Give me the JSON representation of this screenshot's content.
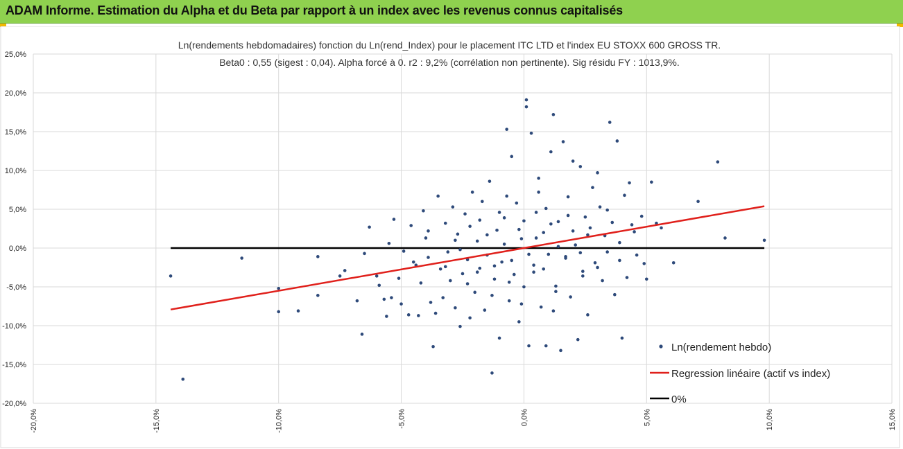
{
  "header": {
    "title": "ADAM Informe. Estimation du Alpha et du Beta par rapport à un index avec les revenus connus capitalisés"
  },
  "colors": {
    "header_bg": "#8fd14f",
    "points": "#2e4a7a",
    "regression": "#e0201b",
    "zero_line": "#000000",
    "grid": "#d9d9d9"
  },
  "chart_data": {
    "type": "scatter",
    "title_line1": "Ln(rendements hebdomadaires) fonction du Ln(rend_Index) pour le placement ITC LTD et l'index EU STOXX 600 GROSS TR.",
    "title_line2": "Beta0 : 0,55  (sigest : 0,04).  Alpha forcé à 0. r2 : 9,2% (corrélation non pertinente). Sig résidu FY : 1013,9%.",
    "xlim": [
      -20,
      15
    ],
    "ylim": [
      -20,
      25
    ],
    "x_ticks": [
      -20,
      -15,
      -10,
      -5,
      0,
      5,
      10,
      15
    ],
    "x_tick_labels": [
      "-20,0%",
      "-15,0%",
      "-10,0%",
      "-5,0%",
      "0,0%",
      "5,0%",
      "10,0%",
      "15,0%"
    ],
    "y_ticks": [
      25,
      20,
      15,
      10,
      5,
      0,
      -5,
      -10,
      -15,
      -20
    ],
    "y_tick_labels": [
      "25,0%",
      "20,0%",
      "15,0%",
      "10,0%",
      "5,0%",
      "0,0%",
      "-5,0%",
      "-10,0%",
      "-15,0%",
      "-20,0%"
    ],
    "regression": {
      "beta": 0.55,
      "alpha": 0,
      "x_range": [
        -14.4,
        9.8
      ]
    },
    "zero_line": {
      "y": 0,
      "x_range": [
        -14.4,
        9.8
      ]
    },
    "series": [
      {
        "name": "Ln(rendement hebdo)",
        "points": [
          [
            -14.4,
            -3.6
          ],
          [
            -13.9,
            -16.9
          ],
          [
            -11.5,
            -1.3
          ],
          [
            -10.0,
            -5.2
          ],
          [
            -10.0,
            -8.2
          ],
          [
            -9.2,
            -8.1
          ],
          [
            -8.4,
            -1.1
          ],
          [
            -8.4,
            -6.1
          ],
          [
            -7.5,
            -3.6
          ],
          [
            -7.3,
            -2.9
          ],
          [
            -6.8,
            -6.8
          ],
          [
            -6.6,
            -11.1
          ],
          [
            -6.5,
            -0.7
          ],
          [
            -6.3,
            2.7
          ],
          [
            -6.0,
            -3.6
          ],
          [
            -5.9,
            -4.8
          ],
          [
            -5.7,
            -6.6
          ],
          [
            -5.6,
            -8.8
          ],
          [
            -5.5,
            0.6
          ],
          [
            -5.4,
            -6.4
          ],
          [
            -5.3,
            3.7
          ],
          [
            -5.1,
            -3.9
          ],
          [
            -5.0,
            -7.2
          ],
          [
            -4.9,
            -0.4
          ],
          [
            -4.7,
            -8.6
          ],
          [
            -4.6,
            2.9
          ],
          [
            -4.4,
            -2.2
          ],
          [
            -4.3,
            -8.7
          ],
          [
            -4.2,
            -4.5
          ],
          [
            -4.1,
            4.8
          ],
          [
            -4.0,
            1.3
          ],
          [
            -3.9,
            -1.2
          ],
          [
            -3.8,
            -7.0
          ],
          [
            -3.7,
            -12.7
          ],
          [
            -3.6,
            -8.4
          ],
          [
            -3.5,
            6.7
          ],
          [
            -3.4,
            -2.7
          ],
          [
            -3.3,
            -6.4
          ],
          [
            -3.2,
            3.2
          ],
          [
            -3.1,
            -0.5
          ],
          [
            -3.0,
            -4.2
          ],
          [
            -2.9,
            5.3
          ],
          [
            -2.8,
            -7.7
          ],
          [
            -2.7,
            1.8
          ],
          [
            -2.6,
            -10.1
          ],
          [
            -2.5,
            -3.3
          ],
          [
            -2.4,
            4.4
          ],
          [
            -2.3,
            -1.5
          ],
          [
            -2.2,
            -9.0
          ],
          [
            -2.1,
            7.2
          ],
          [
            -2.0,
            -5.7
          ],
          [
            -1.9,
            0.9
          ],
          [
            -1.8,
            -2.6
          ],
          [
            -1.7,
            6.0
          ],
          [
            -1.6,
            -8.0
          ],
          [
            -1.5,
            -0.9
          ],
          [
            -1.4,
            8.6
          ],
          [
            -1.3,
            -16.1
          ],
          [
            -1.2,
            -4.0
          ],
          [
            -1.1,
            2.3
          ],
          [
            -1.0,
            -11.6
          ],
          [
            -0.9,
            -1.8
          ],
          [
            -0.8,
            3.9
          ],
          [
            -0.7,
            15.3
          ],
          [
            -0.6,
            -6.8
          ],
          [
            -0.5,
            11.8
          ],
          [
            -0.4,
            -3.4
          ],
          [
            -0.3,
            5.8
          ],
          [
            -0.2,
            -9.5
          ],
          [
            -0.1,
            1.2
          ],
          [
            0.0,
            -5.0
          ],
          [
            0.1,
            19.1
          ],
          [
            0.1,
            18.2
          ],
          [
            0.2,
            -12.6
          ],
          [
            0.3,
            14.8
          ],
          [
            0.4,
            -2.2
          ],
          [
            0.5,
            4.6
          ],
          [
            0.6,
            9.0
          ],
          [
            0.7,
            -7.6
          ],
          [
            0.8,
            2.0
          ],
          [
            0.9,
            -12.6
          ],
          [
            1.0,
            -0.8
          ],
          [
            1.1,
            12.4
          ],
          [
            1.2,
            17.2
          ],
          [
            1.3,
            -4.9
          ],
          [
            1.4,
            3.4
          ],
          [
            1.5,
            -13.2
          ],
          [
            1.6,
            13.7
          ],
          [
            1.7,
            -1.3
          ],
          [
            1.8,
            6.6
          ],
          [
            1.9,
            -6.3
          ],
          [
            2.0,
            11.2
          ],
          [
            2.1,
            0.4
          ],
          [
            2.2,
            -11.8
          ],
          [
            2.3,
            10.5
          ],
          [
            2.4,
            -3.0
          ],
          [
            2.5,
            4.0
          ],
          [
            2.6,
            -8.6
          ],
          [
            2.7,
            2.6
          ],
          [
            2.8,
            7.8
          ],
          [
            2.9,
            -1.9
          ],
          [
            3.0,
            9.7
          ],
          [
            3.1,
            5.3
          ],
          [
            3.2,
            -4.2
          ],
          [
            3.3,
            1.6
          ],
          [
            3.4,
            -0.5
          ],
          [
            3.5,
            16.2
          ],
          [
            3.6,
            3.3
          ],
          [
            3.7,
            -6.0
          ],
          [
            3.8,
            13.8
          ],
          [
            3.9,
            0.7
          ],
          [
            4.0,
            -11.6
          ],
          [
            4.1,
            6.8
          ],
          [
            4.2,
            -3.8
          ],
          [
            4.3,
            8.4
          ],
          [
            4.5,
            2.1
          ],
          [
            4.6,
            -0.9
          ],
          [
            4.8,
            4.1
          ],
          [
            4.9,
            -2.0
          ],
          [
            5.0,
            -4.0
          ],
          [
            5.2,
            8.5
          ],
          [
            5.4,
            3.2
          ],
          [
            5.6,
            2.6
          ],
          [
            6.1,
            -1.9
          ],
          [
            7.1,
            6.0
          ],
          [
            7.9,
            11.1
          ],
          [
            8.2,
            1.3
          ],
          [
            9.8,
            1.0
          ],
          [
            -2.6,
            -0.2
          ],
          [
            -2.2,
            2.8
          ],
          [
            -1.9,
            -3.1
          ],
          [
            -1.5,
            1.7
          ],
          [
            -1.2,
            -2.3
          ],
          [
            -0.8,
            0.5
          ],
          [
            -0.5,
            -1.6
          ],
          [
            -0.2,
            2.4
          ],
          [
            0.2,
            -0.8
          ],
          [
            0.5,
            1.3
          ],
          [
            0.8,
            -2.7
          ],
          [
            1.1,
            3.1
          ],
          [
            1.4,
            0.2
          ],
          [
            1.7,
            -1.1
          ],
          [
            2.0,
            2.2
          ],
          [
            2.3,
            -0.6
          ],
          [
            -1.0,
            4.6
          ],
          [
            -0.6,
            -4.4
          ],
          [
            0.0,
            3.5
          ],
          [
            0.4,
            -3.1
          ],
          [
            0.9,
            5.1
          ],
          [
            1.3,
            -5.6
          ],
          [
            1.8,
            4.2
          ],
          [
            2.4,
            -3.6
          ],
          [
            -3.2,
            -2.4
          ],
          [
            -2.8,
            1.0
          ],
          [
            -2.3,
            -4.6
          ],
          [
            -1.8,
            3.6
          ],
          [
            -1.3,
            -6.1
          ],
          [
            -0.7,
            6.7
          ],
          [
            -0.1,
            -7.2
          ],
          [
            0.6,
            7.2
          ],
          [
            1.2,
            -8.1
          ],
          [
            2.6,
            1.7
          ],
          [
            3.0,
            -2.5
          ],
          [
            3.4,
            4.9
          ],
          [
            3.9,
            -1.6
          ],
          [
            4.4,
            3.0
          ],
          [
            -4.5,
            -1.8
          ],
          [
            -3.9,
            2.2
          ]
        ]
      }
    ],
    "legend": [
      {
        "label": "Ln(rendement hebdo)",
        "kind": "marker"
      },
      {
        "label": "Regression linéaire (actif vs index)",
        "kind": "line-red"
      },
      {
        "label": "0%",
        "kind": "line-black"
      }
    ],
    "legend_position": "bottom-right"
  }
}
